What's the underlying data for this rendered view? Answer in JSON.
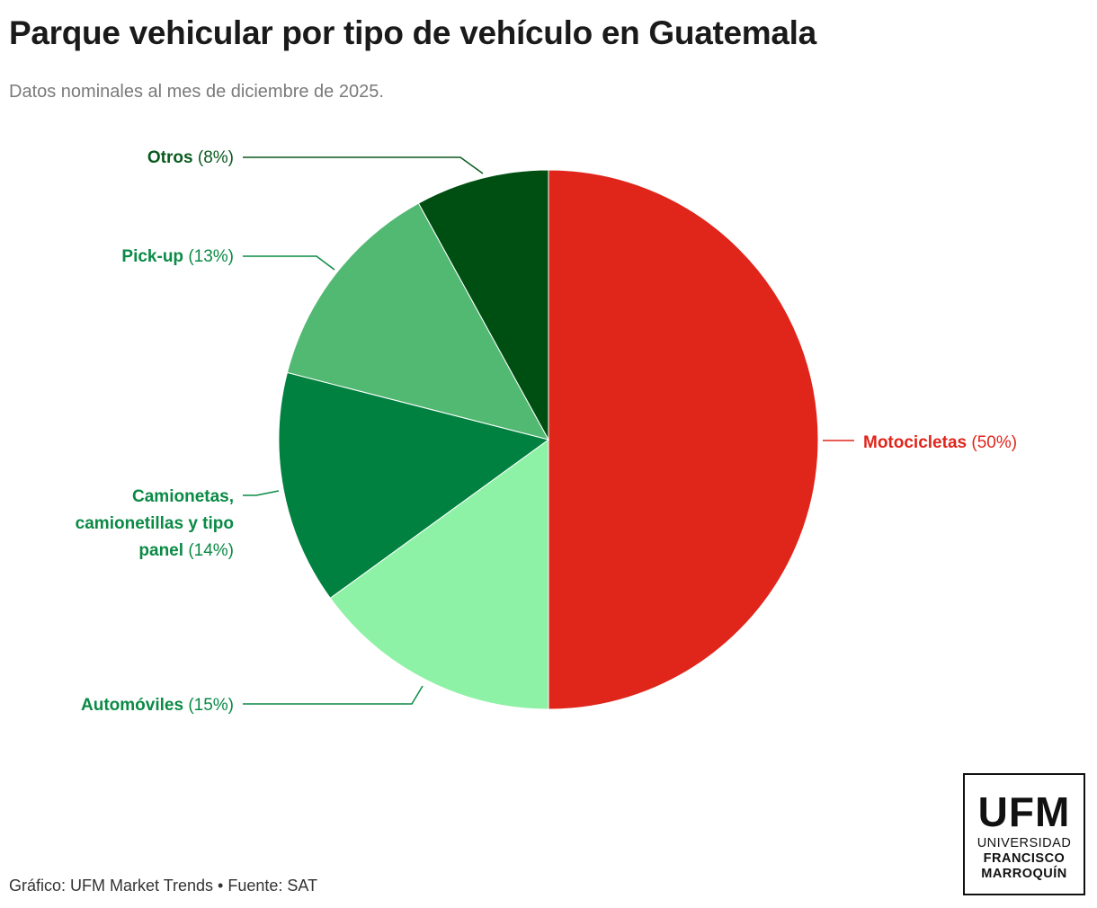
{
  "header": {
    "title": "Parque vehicular por tipo de vehículo en Guatemala",
    "subtitle": "Datos nominales al mes de diciembre de 2025."
  },
  "footer": {
    "text": "Gráfico: UFM Market Trends • Fuente: SAT"
  },
  "logo": {
    "big": "UFM",
    "line1": "UNIVERSIDAD",
    "line2": "FRANCISCO",
    "line3": "MARROQUÍN"
  },
  "chart_data": {
    "type": "pie",
    "title": "Parque vehicular por tipo de vehículo en Guatemala",
    "start": "top",
    "direction": "clockwise",
    "slices": [
      {
        "name": "Motocicletas",
        "value": 50,
        "pct_label": "(50%)",
        "color": "#e0251b",
        "label_color": "#e0251b"
      },
      {
        "name": "Automóviles",
        "value": 15,
        "pct_label": "(15%)",
        "color": "#8df2a5",
        "label_color": "#0a8a45"
      },
      {
        "name": "Camionetas, camionetillas y tipo panel",
        "name_lines": [
          "Camionetas,",
          "camionetillas y tipo",
          "panel"
        ],
        "value": 14,
        "pct_label": "(14%)",
        "color": "#008140",
        "label_color": "#0a8a45"
      },
      {
        "name": "Pick-up",
        "value": 13,
        "pct_label": "(13%)",
        "color": "#52b972",
        "label_color": "#0a8a45"
      },
      {
        "name": "Otros",
        "value": 8,
        "pct_label": "(8%)",
        "color": "#004f12",
        "label_color": "#0a5a1e"
      }
    ]
  }
}
